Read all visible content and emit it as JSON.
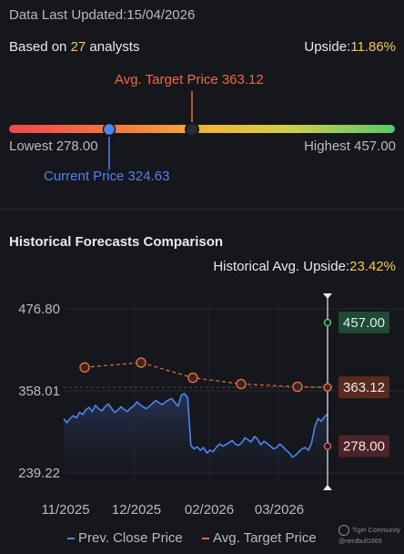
{
  "header": {
    "updated_label": "Data Last Updated:",
    "updated_date": "15/04/2026",
    "based_prefix": "Based on ",
    "analyst_count": "27",
    "based_suffix": " analysts",
    "upside_label": "Upside:",
    "upside_value": "11.86%"
  },
  "range": {
    "avg_target_label": "Avg. Target Price 363.12",
    "lowest_label": "Lowest 278.00",
    "highest_label": "Highest 457.00",
    "current_label": "Current Price 324.63",
    "low": 278.0,
    "high": 457.0,
    "current": 324.63,
    "avg_target": 363.12
  },
  "historical": {
    "title": "Historical Forecasts Comparison",
    "upside_label": "Historical Avg. Upside:",
    "upside_value": "23.42%"
  },
  "legend": {
    "close_label": "Prev. Close Price",
    "avg_label": "Avg. Target Price"
  },
  "watermark": {
    "line1": "Tiger Community",
    "line2": "@nerdbull1669"
  },
  "colors": {
    "close_line": "#4d84f0",
    "avg_target": "#ee6a3c",
    "high_badge": "#1f4a34",
    "mid_badge": "#5a2a1e",
    "low_badge": "#4e2328",
    "high_marker": "#57c86b",
    "low_marker": "#e05a5a"
  },
  "chart_data": {
    "type": "line",
    "y_ticks": [
      "476.80",
      "358.01",
      "239.22"
    ],
    "ylim": [
      239.22,
      476.8
    ],
    "x_ticks": [
      "11/2025",
      "12/2025",
      "02/2026",
      "03/2026"
    ],
    "series": [
      {
        "name": "Prev. Close Price",
        "values": [
          318,
          312,
          318,
          322,
          319,
          327,
          324,
          331,
          334,
          328,
          337,
          332,
          329,
          335,
          339,
          333,
          327,
          330,
          335,
          331,
          328,
          333,
          336,
          342,
          338,
          335,
          332,
          336,
          340,
          344,
          341,
          338,
          342,
          345,
          347,
          341,
          336,
          352,
          354,
          348,
          279,
          274,
          277,
          272,
          276,
          268,
          272,
          270,
          276,
          281,
          278,
          280,
          283,
          286,
          281,
          279,
          283,
          290,
          287,
          284,
          292,
          288,
          280,
          285,
          282,
          278,
          274,
          276,
          281,
          277,
          272,
          268,
          262,
          265,
          270,
          274,
          276,
          272,
          283,
          306,
          318,
          314,
          320,
          324.63
        ]
      },
      {
        "name": "Avg. Target Price",
        "points": [
          {
            "x": "11/2025",
            "y": 392
          },
          {
            "x": "12/2025",
            "y": 399
          },
          {
            "x": "01/2026",
            "y": 377
          },
          {
            "x": "02/2026",
            "y": 368
          },
          {
            "x": "03/2026",
            "y": 364
          },
          {
            "x": "04/2026",
            "y": 363.12
          }
        ]
      }
    ],
    "forecast_markers": [
      {
        "label": "457.00",
        "value": 457.0
      },
      {
        "label": "363.12",
        "value": 363.12
      },
      {
        "label": "278.00",
        "value": 278.0
      }
    ],
    "grid": true
  }
}
